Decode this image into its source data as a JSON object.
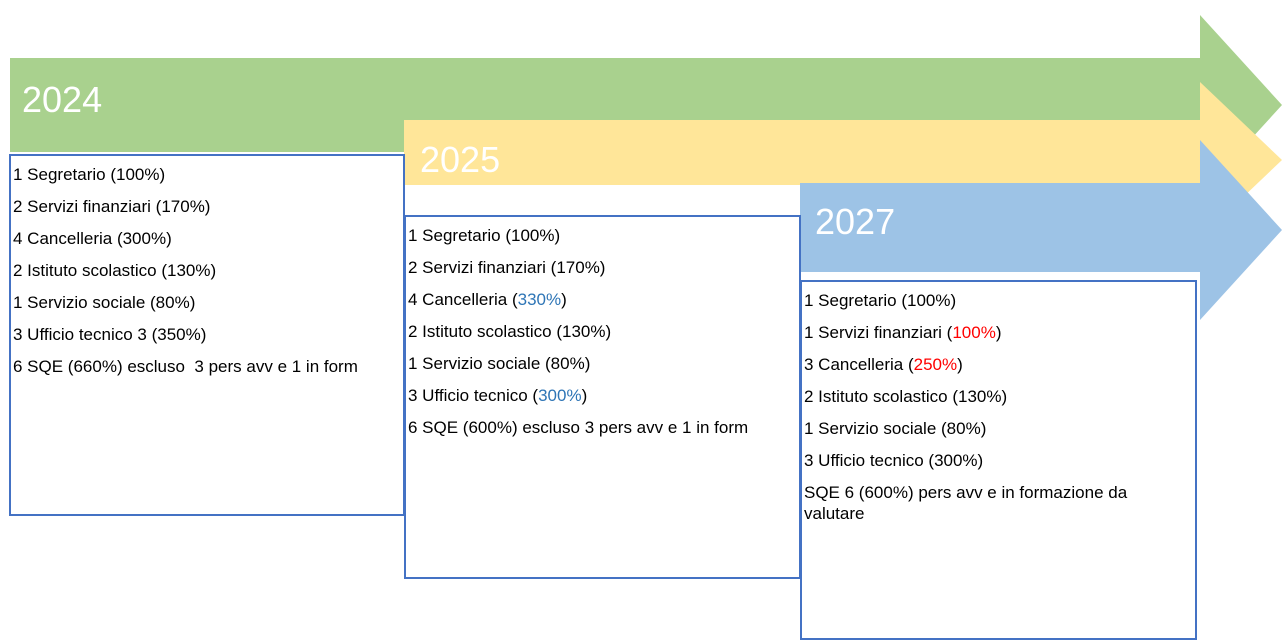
{
  "timeline": [
    {
      "year": "2024",
      "items": [
        [
          {
            "text": "1 Segretario (100%)"
          }
        ],
        [
          {
            "text": "2 Servizi finanziari (170%)"
          }
        ],
        [
          {
            "text": "4 Cancelleria (300%)"
          }
        ],
        [
          {
            "text": "2 Istituto scolastico (130%)"
          }
        ],
        [
          {
            "text": "1 Servizio sociale (80%)"
          }
        ],
        [
          {
            "text": "3 Ufficio tecnico 3 (350%)"
          }
        ],
        [
          {
            "text": "6 SQE (660%) escluso  3 pers avv e 1 in form"
          }
        ]
      ]
    },
    {
      "year": "2025",
      "items": [
        [
          {
            "text": "1 Segretario (100%)"
          }
        ],
        [
          {
            "text": "2 Servizi finanziari (170%)"
          }
        ],
        [
          {
            "text": "4 Cancelleria ("
          },
          {
            "text": "330%",
            "color": "#2e75b6"
          },
          {
            "text": ")"
          }
        ],
        [
          {
            "text": "2 Istituto scolastico (130%)"
          }
        ],
        [
          {
            "text": "1 Servizio sociale (80%)"
          }
        ],
        [
          {
            "text": "3 Ufficio tecnico ("
          },
          {
            "text": "300%",
            "color": "#2e75b6"
          },
          {
            "text": ")"
          }
        ],
        [
          {
            "text": "6 SQE (600%) escluso 3 pers avv e 1 in form"
          }
        ]
      ]
    },
    {
      "year": "2027",
      "items": [
        [
          {
            "text": "1 Segretario (100%)"
          }
        ],
        [
          {
            "text": "1 Servizi finanziari ("
          },
          {
            "text": "100%",
            "color": "#ff0000"
          },
          {
            "text": ")"
          }
        ],
        [
          {
            "text": "3 Cancelleria ("
          },
          {
            "text": "250%",
            "color": "#ff0000"
          },
          {
            "text": ")"
          }
        ],
        [
          {
            "text": "2 Istituto scolastico (130%)"
          }
        ],
        [
          {
            "text": "1 Servizio sociale (80%)"
          }
        ],
        [
          {
            "text": "3 Ufficio tecnico (300%)"
          }
        ],
        [
          {
            "text": "SQE 6 (600%) pers avv e in formazione da valutare"
          }
        ]
      ]
    }
  ]
}
